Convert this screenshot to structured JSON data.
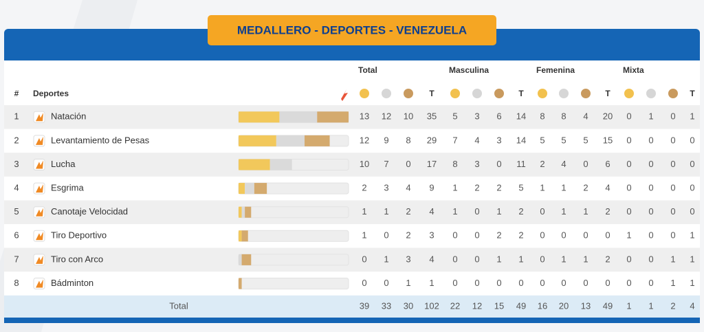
{
  "header": {
    "title": "MEDALLERO - DEPORTES - VENEZUELA"
  },
  "columns": {
    "number": "#",
    "sport": "Deportes",
    "groups": [
      "Total",
      "Masculina",
      "Femenina",
      "Mixta"
    ],
    "total": "T"
  },
  "rows": [
    {
      "rank": "1",
      "sport": "Natación",
      "values": [
        13,
        12,
        10,
        35,
        5,
        3,
        6,
        14,
        8,
        8,
        4,
        20,
        0,
        1,
        0,
        1
      ]
    },
    {
      "rank": "2",
      "sport": "Levantamiento de Pesas",
      "values": [
        12,
        9,
        8,
        29,
        7,
        4,
        3,
        14,
        5,
        5,
        5,
        15,
        0,
        0,
        0,
        0
      ]
    },
    {
      "rank": "3",
      "sport": "Lucha",
      "values": [
        10,
        7,
        0,
        17,
        8,
        3,
        0,
        11,
        2,
        4,
        0,
        6,
        0,
        0,
        0,
        0
      ]
    },
    {
      "rank": "4",
      "sport": "Esgrima",
      "values": [
        2,
        3,
        4,
        9,
        1,
        2,
        2,
        5,
        1,
        1,
        2,
        4,
        0,
        0,
        0,
        0
      ]
    },
    {
      "rank": "5",
      "sport": "Canotaje Velocidad",
      "values": [
        1,
        1,
        2,
        4,
        1,
        0,
        1,
        2,
        0,
        1,
        1,
        2,
        0,
        0,
        0,
        0
      ]
    },
    {
      "rank": "6",
      "sport": "Tiro Deportivo",
      "values": [
        1,
        0,
        2,
        3,
        0,
        0,
        2,
        2,
        0,
        0,
        0,
        0,
        1,
        0,
        0,
        1
      ]
    },
    {
      "rank": "7",
      "sport": "Tiro con Arco",
      "values": [
        0,
        1,
        3,
        4,
        0,
        0,
        1,
        1,
        0,
        1,
        1,
        2,
        0,
        0,
        1,
        1
      ]
    },
    {
      "rank": "8",
      "sport": "Bádminton",
      "values": [
        0,
        0,
        1,
        1,
        0,
        0,
        0,
        0,
        0,
        0,
        0,
        0,
        0,
        0,
        1,
        1
      ]
    }
  ],
  "totals": {
    "label": "Total",
    "values": [
      39,
      33,
      30,
      102,
      22,
      12,
      15,
      49,
      16,
      20,
      13,
      49,
      1,
      1,
      2,
      4
    ]
  }
}
